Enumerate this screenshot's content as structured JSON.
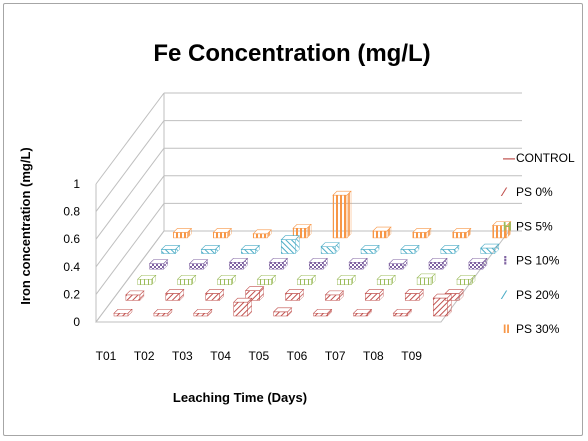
{
  "chart_data": {
    "type": "bar",
    "title": "Fe Concentration (mg/L)",
    "xlabel": "Leaching Time (Days)",
    "ylabel": "Iron concentration (mg/L)",
    "ylim": [
      0,
      1
    ],
    "yticks": [
      "0",
      "0.2",
      "0.4",
      "0.6",
      "0.8",
      "1"
    ],
    "categories": [
      "T01",
      "T02",
      "T03",
      "T04",
      "T05",
      "T06",
      "T07",
      "T08",
      "T09"
    ],
    "legend_position": "right",
    "three_d": true,
    "grid": true,
    "series": [
      {
        "name": "CONTROL",
        "color": "#c0504d",
        "values": [
          0.02,
          0.02,
          0.02,
          0.1,
          0.03,
          0.02,
          0.02,
          0.02,
          0.13
        ]
      },
      {
        "name": "PS 0%",
        "color": "#c0504d",
        "values": [
          0.04,
          0.05,
          0.05,
          0.07,
          0.05,
          0.04,
          0.05,
          0.05,
          0.05
        ]
      },
      {
        "name": "PS 5%",
        "color": "#9bbb59",
        "values": [
          0.04,
          0.04,
          0.04,
          0.04,
          0.04,
          0.04,
          0.04,
          0.05,
          0.04
        ]
      },
      {
        "name": "PS 10%",
        "color": "#8064a2",
        "values": [
          0.04,
          0.04,
          0.05,
          0.05,
          0.05,
          0.05,
          0.04,
          0.05,
          0.05
        ]
      },
      {
        "name": "PS 20%",
        "color": "#4bacc6",
        "values": [
          0.03,
          0.03,
          0.03,
          0.1,
          0.05,
          0.03,
          0.03,
          0.03,
          0.04
        ]
      },
      {
        "name": "PS 30%",
        "color": "#f79646",
        "values": [
          0.04,
          0.04,
          0.03,
          0.07,
          0.31,
          0.05,
          0.04,
          0.04,
          0.09
        ]
      }
    ]
  }
}
